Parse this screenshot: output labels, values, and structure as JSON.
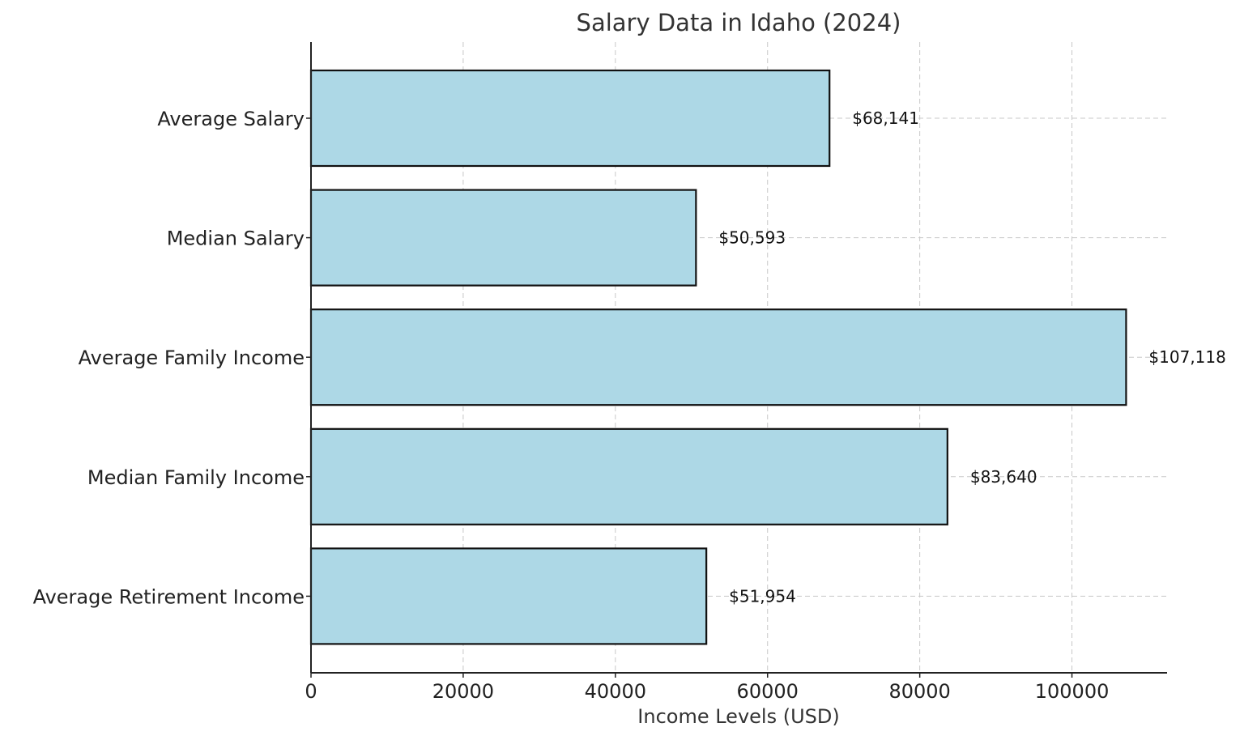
{
  "chart_data": {
    "type": "bar",
    "orientation": "horizontal",
    "title": "Salary Data in Idaho (2024)",
    "xlabel": "Income Levels (USD)",
    "ylabel": "",
    "categories": [
      "Average Salary",
      "Median Salary",
      "Average Family Income",
      "Median Family Income",
      "Average Retirement Income"
    ],
    "values": [
      68141,
      50593,
      107118,
      83640,
      51954
    ],
    "value_labels": [
      "$68,141",
      "$50,593",
      "$107,118",
      "$83,640",
      "$51,954"
    ],
    "xlim": [
      0,
      112500
    ],
    "xticks": [
      0,
      20000,
      40000,
      60000,
      80000,
      100000
    ],
    "xtick_labels": [
      "0",
      "20000",
      "40000",
      "60000",
      "80000",
      "100000"
    ],
    "grid": true,
    "bar_color": "#add8e6",
    "edge_color": "#111111"
  }
}
